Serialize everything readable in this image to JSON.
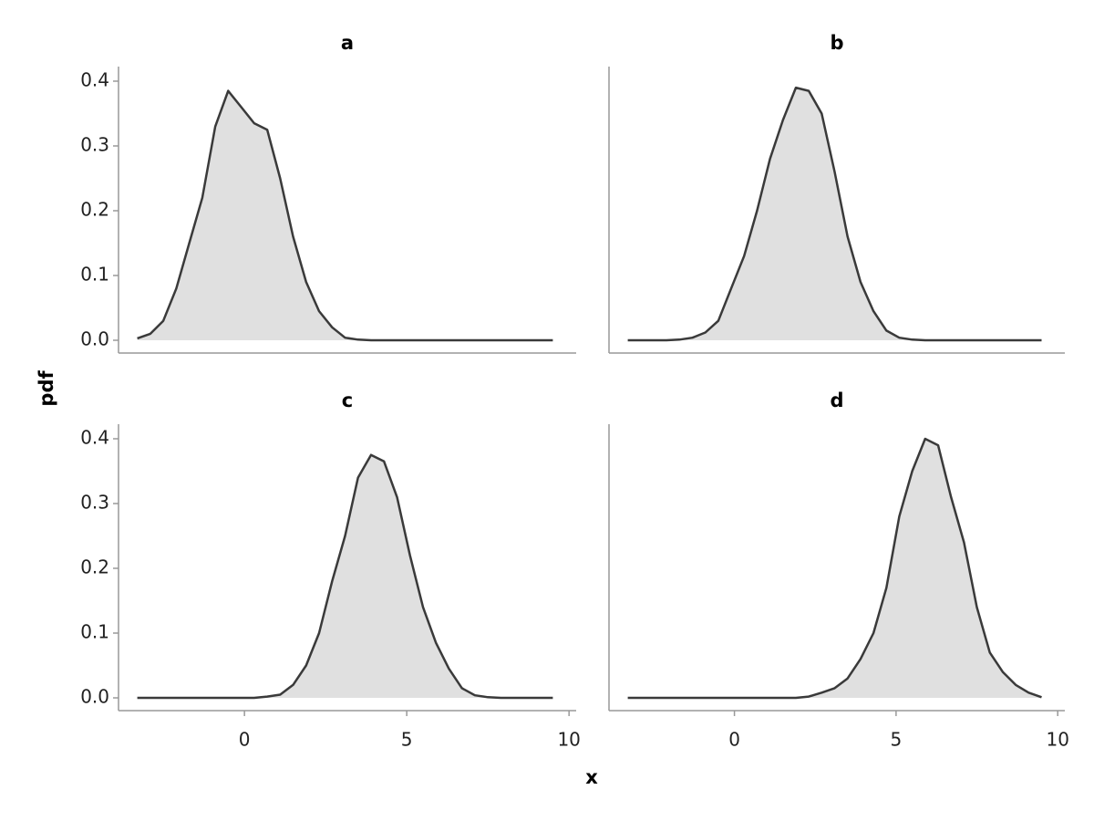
{
  "xlabel": "x",
  "ylabel": "pdf",
  "chart_data": [
    {
      "type": "area",
      "title": "a",
      "color": "#3a3a3a",
      "fill": "#e0e0e0",
      "x": [
        -3.3,
        -2.9,
        -2.5,
        -2.1,
        -1.7,
        -1.3,
        -0.9,
        -0.5,
        -0.1,
        0.3,
        0.7,
        1.1,
        1.5,
        1.9,
        2.3,
        2.7,
        3.1,
        3.5,
        3.9,
        4.3,
        4.7,
        5.1,
        5.5,
        5.9,
        6.3,
        6.7,
        7.1,
        7.5,
        7.9,
        8.3,
        8.7,
        9.1,
        9.5
      ],
      "values": [
        0.003,
        0.01,
        0.03,
        0.08,
        0.15,
        0.22,
        0.33,
        0.385,
        0.36,
        0.335,
        0.325,
        0.25,
        0.16,
        0.09,
        0.045,
        0.02,
        0.004,
        0.001,
        0,
        0,
        0,
        0,
        0,
        0,
        0,
        0,
        0,
        0,
        0,
        0,
        0,
        0,
        0
      ],
      "xlim": [
        -3.88,
        10.22
      ],
      "ylim": [
        -0.0197,
        0.4225
      ],
      "yticks": [
        {
          "value": 0,
          "label": "0.0"
        },
        0.1,
        0.2,
        0.3,
        0.4
      ]
    },
    {
      "type": "area",
      "title": "b",
      "color": "#3a3a3a",
      "fill": "#e0e0e0",
      "x": [
        -3.3,
        -2.9,
        -2.5,
        -2.1,
        -1.7,
        -1.3,
        -0.9,
        -0.5,
        -0.1,
        0.3,
        0.7,
        1.1,
        1.5,
        1.9,
        2.3,
        2.7,
        3.1,
        3.5,
        3.9,
        4.3,
        4.7,
        5.1,
        5.5,
        5.9,
        6.3,
        6.7,
        7.1,
        7.5,
        7.9,
        8.3,
        8.7,
        9.1,
        9.5
      ],
      "values": [
        0,
        0,
        0,
        0,
        0.001,
        0.004,
        0.012,
        0.03,
        0.08,
        0.13,
        0.2,
        0.28,
        0.34,
        0.39,
        0.385,
        0.35,
        0.26,
        0.16,
        0.09,
        0.045,
        0.015,
        0.004,
        0.001,
        0,
        0,
        0,
        0,
        0,
        0,
        0,
        0,
        0,
        0
      ],
      "xlim": [
        -3.88,
        10.22
      ],
      "ylim": [
        -0.0197,
        0.4225
      ]
    },
    {
      "type": "area",
      "title": "c",
      "color": "#3a3a3a",
      "fill": "#e0e0e0",
      "x": [
        -3.3,
        -2.9,
        -2.5,
        -2.1,
        -1.7,
        -1.3,
        -0.9,
        -0.5,
        -0.1,
        0.3,
        0.7,
        1.1,
        1.5,
        1.9,
        2.3,
        2.7,
        3.1,
        3.5,
        3.9,
        4.3,
        4.7,
        5.1,
        5.5,
        5.9,
        6.3,
        6.7,
        7.1,
        7.5,
        7.9,
        8.3,
        8.7,
        9.1,
        9.5
      ],
      "values": [
        0,
        0,
        0,
        0,
        0,
        0,
        0,
        0,
        0,
        0,
        0.002,
        0.005,
        0.02,
        0.05,
        0.1,
        0.18,
        0.25,
        0.34,
        0.375,
        0.365,
        0.31,
        0.22,
        0.14,
        0.085,
        0.045,
        0.015,
        0.004,
        0.001,
        0,
        0,
        0,
        0,
        0
      ],
      "xlim": [
        -3.88,
        10.22
      ],
      "ylim": [
        -0.0197,
        0.4225
      ],
      "xticks": [
        0,
        5,
        10
      ],
      "yticks": [
        {
          "value": 0,
          "label": "0.0"
        },
        0.1,
        0.2,
        0.3,
        0.4
      ]
    },
    {
      "type": "area",
      "title": "d",
      "color": "#3a3a3a",
      "fill": "#e0e0e0",
      "x": [
        -3.3,
        -2.9,
        -2.5,
        -2.1,
        -1.7,
        -1.3,
        -0.9,
        -0.5,
        -0.1,
        0.3,
        0.7,
        1.1,
        1.5,
        1.9,
        2.3,
        2.7,
        3.1,
        3.5,
        3.9,
        4.3,
        4.7,
        5.1,
        5.5,
        5.9,
        6.3,
        6.7,
        7.1,
        7.5,
        7.9,
        8.3,
        8.7,
        9.1,
        9.5
      ],
      "values": [
        0,
        0,
        0,
        0,
        0,
        0,
        0,
        0,
        0,
        0,
        0,
        0,
        0,
        0,
        0.002,
        0.008,
        0.015,
        0.03,
        0.06,
        0.1,
        0.17,
        0.28,
        0.35,
        0.4,
        0.39,
        0.31,
        0.24,
        0.14,
        0.07,
        0.04,
        0.02,
        0.008,
        0.001
      ],
      "xlim": [
        -3.88,
        10.22
      ],
      "ylim": [
        -0.0197,
        0.4225
      ],
      "xticks": [
        0,
        5,
        10
      ]
    }
  ]
}
